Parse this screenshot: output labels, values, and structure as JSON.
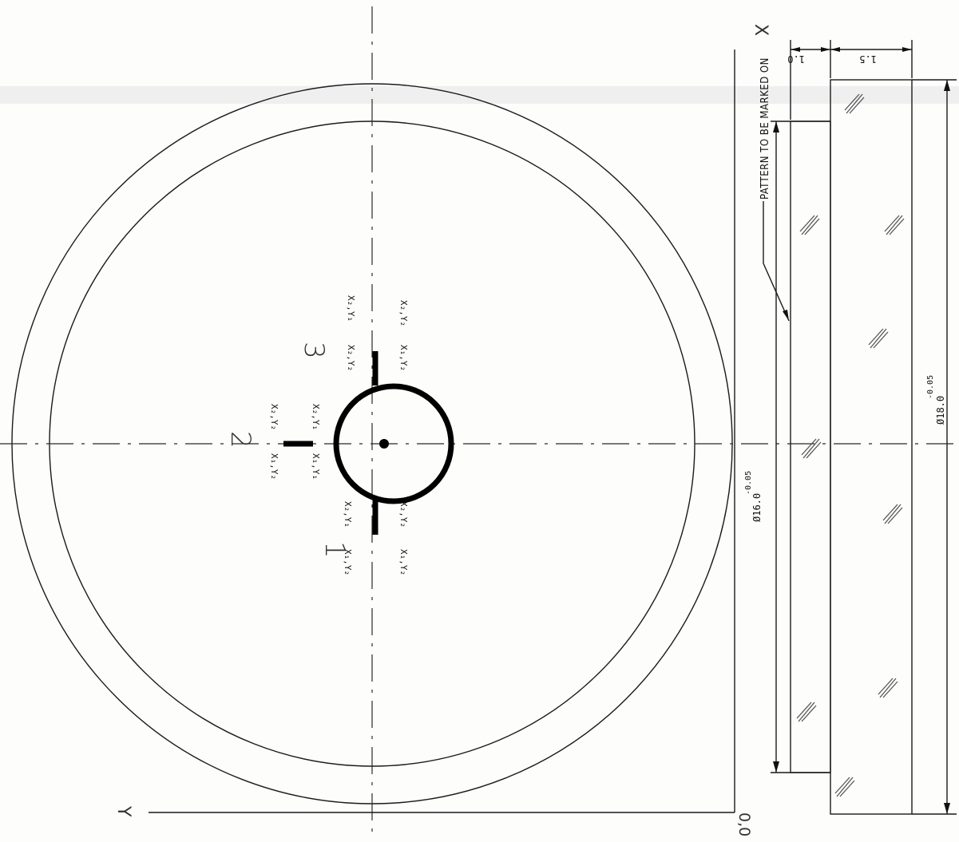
{
  "axes": {
    "x_label": "X",
    "y_label": "Y",
    "origin": "0,0"
  },
  "pattern_numbers": [
    "1",
    "2",
    "3"
  ],
  "coord_labels": {
    "p1_a": "X₁,Y₂",
    "p1_b": "X₂,Y₁",
    "p1_c": "X₁,Y₂",
    "p1_d": "X₂,Y₂",
    "p2_a": "X₁,Y₂",
    "p2_b": "X₂,Y₂",
    "p2_c": "X₁,Y₁",
    "p2_d": "X₂,Y₁",
    "p3_a": "X₂,Y₁",
    "p3_b": "X₂,Y₂",
    "p3_c": "X₁,Y₂",
    "p3_d": "X₂,Y₂"
  },
  "dimensions": {
    "inner_diameter": "Ø16.0",
    "inner_tol": "-0.05",
    "outer_diameter": "Ø18.0",
    "outer_tol": "-0.05",
    "step_height": "1.0",
    "total_height": "1.5"
  },
  "note": "PATTERN TO BE MARKED ON"
}
